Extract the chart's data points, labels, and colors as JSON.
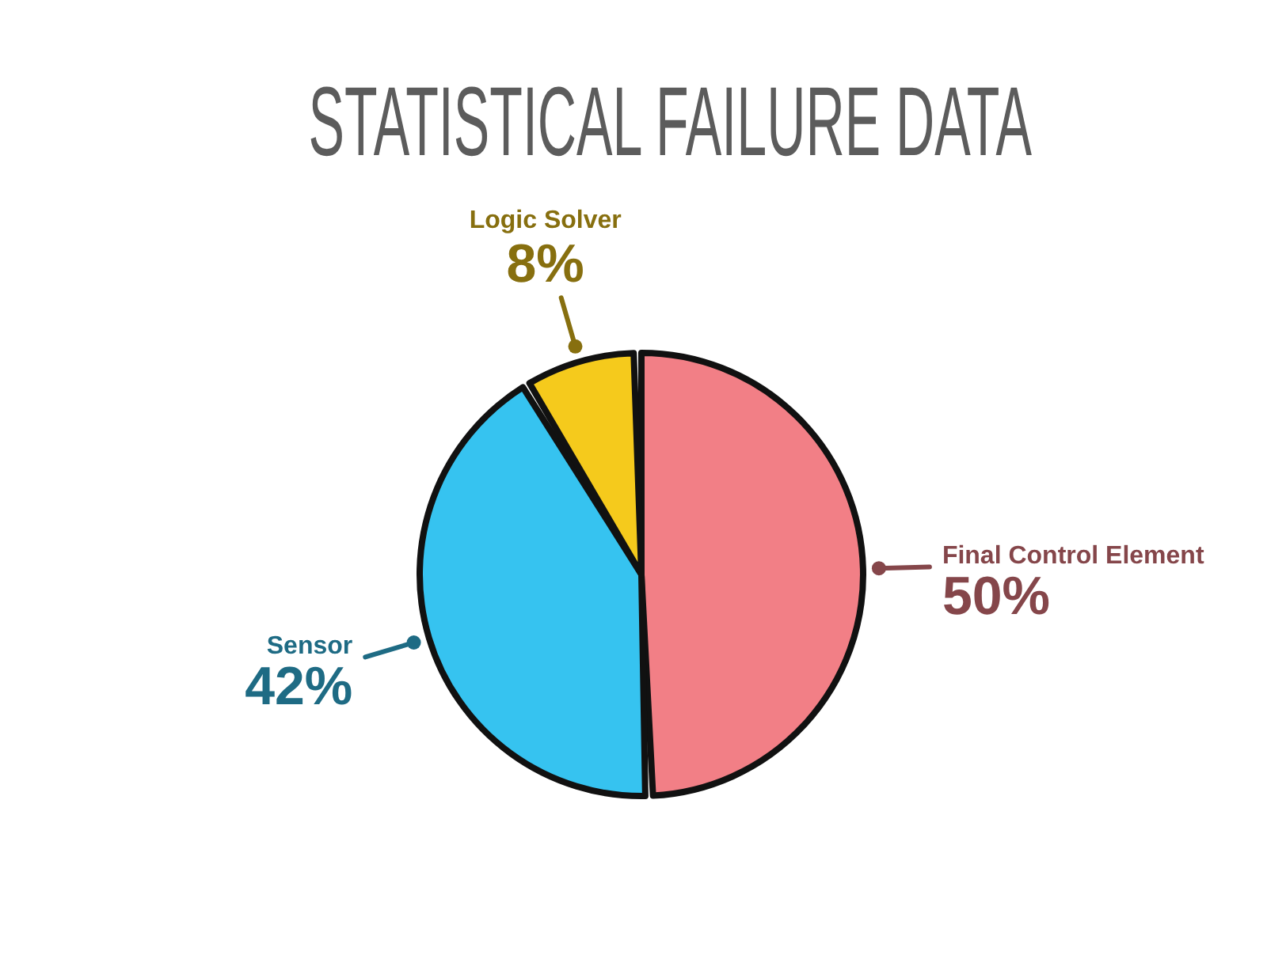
{
  "chart_data": {
    "type": "pie",
    "title": "STATISTICAL FAILURE DATA",
    "categories": [
      "Final Control Element",
      "Sensor",
      "Logic Solver"
    ],
    "values": [
      50,
      42,
      8
    ],
    "colors": [
      "#f27f86",
      "#36c3f0",
      "#f5ca1c"
    ],
    "value_labels": [
      "50%",
      "42%",
      "8%"
    ]
  }
}
